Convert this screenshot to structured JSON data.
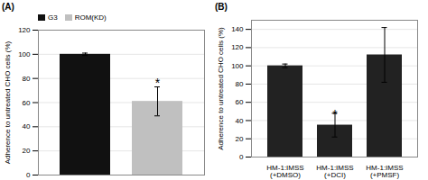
{
  "chart_data": [
    {
      "type": "bar",
      "title": "(A)",
      "categories": [
        "G3",
        "ROM(KD)"
      ],
      "values": [
        100,
        61
      ],
      "errors": [
        1,
        12
      ],
      "colors": [
        "#111111",
        "#c0c0c0"
      ],
      "ylabel": "Adherence to untreated CHO cells (%)",
      "ylim": [
        0,
        120
      ],
      "yticks": [
        0,
        20,
        40,
        60,
        80,
        100,
        120
      ],
      "grid": true,
      "legend": "upper left",
      "tick_labels": "y",
      "annotations": [
        {
          "text": "*",
          "x": "ROM(KD)",
          "y": 80
        }
      ]
    },
    {
      "type": "bar",
      "title": "(B)",
      "categories": [
        "HM-1:IMSS\n(+DMSO)",
        "HM-1:IMSS\n(+DCI)",
        "HM-1:IMSS\n(+PMSF)"
      ],
      "values": [
        100,
        35,
        112
      ],
      "errors": [
        2,
        13,
        30
      ],
      "colors": [
        "#222222",
        "#222222",
        "#222222"
      ],
      "ylabel": "Adherence to untreated CHO cells (%)",
      "ylim": [
        0,
        150
      ],
      "yticks": [
        0,
        20,
        40,
        60,
        80,
        100,
        120,
        140
      ],
      "grid": true,
      "annotations": [
        {
          "text": "*",
          "x": "HM-1:IMSS\n(+DCI)",
          "y": 52
        }
      ]
    }
  ]
}
